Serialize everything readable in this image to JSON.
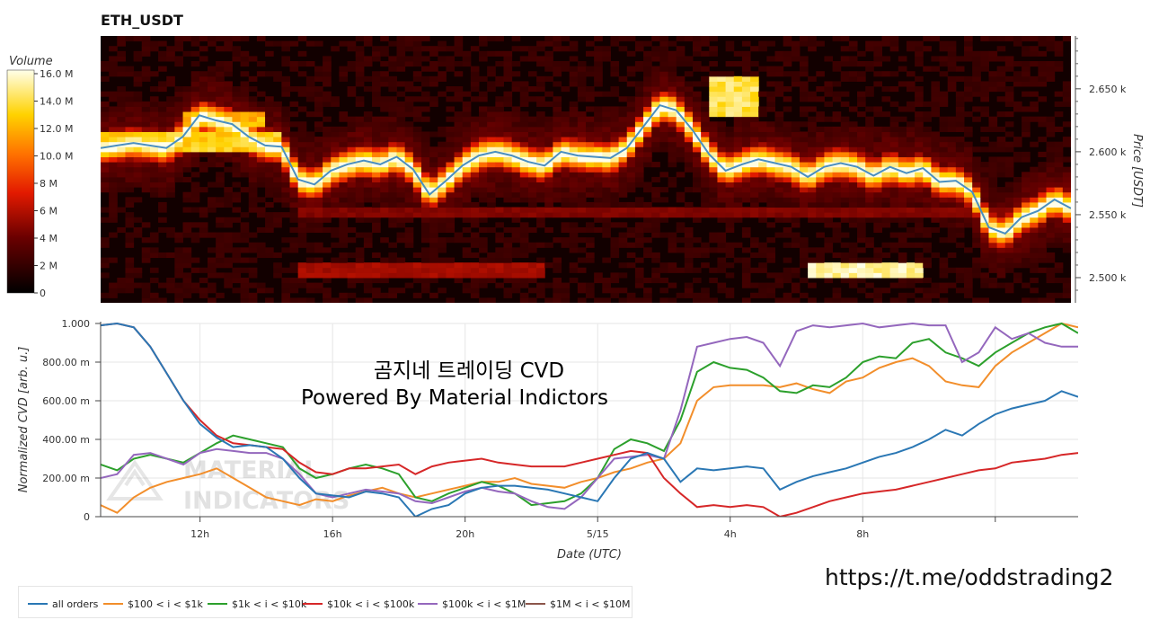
{
  "header": {
    "title": "ETH_USDT"
  },
  "colorbar": {
    "title": "Volume",
    "ticks": [
      "0",
      "2 M",
      "4 M",
      "6 M",
      "8 M",
      "10.0 M",
      "12.0 M",
      "14.0 M",
      "16.0 M"
    ]
  },
  "watermark": {
    "line1": "MATERIAL",
    "line2": "INDICATORS"
  },
  "annotation": {
    "line1": "곰지네 트레이딩 CVD",
    "line2": "Powered By Material Indictors"
  },
  "footer": {
    "link": "https://t.me/oddstrading2"
  },
  "colors": {
    "all_orders": "#2a77b4",
    "b100_1k": "#f28e2b",
    "b1k_10k": "#2ca02c",
    "b10k_100k": "#d62728",
    "b100k_1m": "#9467bd",
    "b1m_10m": "#8c564b",
    "price_line": "#4a8fc0"
  },
  "chart_data": [
    {
      "type": "heatmap",
      "title": "ETH_USDT",
      "xlabel": "",
      "ylabel": "Price [USDT]",
      "y_axis_side": "right",
      "ylim": [
        2480,
        2692
      ],
      "yticks": [
        2500,
        2550,
        2600,
        2650
      ],
      "ytick_labels": [
        "2.500 k",
        "2.550 k",
        "2.600 k",
        "2.650 k"
      ],
      "color_scale": {
        "name": "hot",
        "min": 0,
        "max": 16000000,
        "unit": "Volume"
      },
      "price_series": {
        "x_hours_from_start": [
          0,
          1,
          2,
          2.5,
          3,
          3.5,
          4,
          4.5,
          5,
          5.5,
          6,
          6.5,
          7,
          7.5,
          8,
          8.5,
          9,
          9.5,
          10,
          10.5,
          11,
          11.5,
          12,
          12.5,
          13,
          13.5,
          14,
          14.5,
          15,
          15.5,
          16,
          16.5,
          17,
          17.5,
          18,
          18.5,
          19,
          19.5,
          20,
          20.5,
          21,
          21.5,
          22,
          22.5,
          23,
          23.5,
          24,
          24.5,
          25,
          25.5,
          26,
          26.5,
          27,
          27.5,
          28,
          28.5,
          29,
          29.5
        ],
        "price": [
          2603,
          2607,
          2603,
          2612,
          2629,
          2625,
          2622,
          2612,
          2605,
          2604,
          2578,
          2574,
          2585,
          2590,
          2593,
          2590,
          2596,
          2586,
          2566,
          2577,
          2589,
          2597,
          2600,
          2597,
          2592,
          2589,
          2600,
          2597,
          2596,
          2595,
          2603,
          2620,
          2637,
          2633,
          2617,
          2598,
          2585,
          2590,
          2594,
          2591,
          2588,
          2580,
          2588,
          2591,
          2588,
          2581,
          2588,
          2583,
          2587,
          2576,
          2577,
          2568,
          2540,
          2535,
          2548,
          2553,
          2562,
          2555
        ]
      },
      "heat_bands": [
        {
          "price_low": 2600,
          "price_high": 2615,
          "volume": 14000000,
          "hours": [
            0,
            5.5
          ]
        },
        {
          "price_low": 2620,
          "price_high": 2632,
          "volume": 13000000,
          "hours": [
            2.5,
            5
          ]
        },
        {
          "price_low": 2500,
          "price_high": 2510,
          "volume": 6000000,
          "hours": [
            6,
            13.5
          ]
        },
        {
          "price_low": 2500,
          "price_high": 2510,
          "volume": 16000000,
          "hours": [
            21.5,
            25
          ]
        },
        {
          "price_low": 2548,
          "price_high": 2556,
          "volume": 5000000,
          "hours": [
            6,
            29.5
          ]
        },
        {
          "price_low": 2630,
          "price_high": 2660,
          "volume": 15000000,
          "hours": [
            18.5,
            20
          ]
        }
      ]
    },
    {
      "type": "line",
      "title": "",
      "xlabel": "Date (UTC)",
      "ylabel": "Normalized CVD [arb. u.]",
      "ylim": [
        0,
        1
      ],
      "yticks": [
        0,
        0.2,
        0.4,
        0.6,
        0.8,
        1.0
      ],
      "ytick_labels": [
        "0",
        "200.00 m",
        "400.00 m",
        "600.00 m",
        "800.00 m",
        "1.000"
      ],
      "xlim_hours": [
        0,
        29.5
      ],
      "xticks_hours": [
        3,
        7,
        11,
        15,
        19,
        23,
        27
      ],
      "xtick_labels": [
        "12h",
        "16h",
        "20h",
        "5/15",
        "4h",
        "8h",
        ""
      ],
      "grid": true,
      "legend_position": "bottom-left-outside",
      "x_hours_from_start": [
        0,
        0.5,
        1,
        1.5,
        2,
        2.5,
        3,
        3.5,
        4,
        4.5,
        5,
        5.5,
        6,
        6.5,
        7,
        7.5,
        8,
        8.5,
        9,
        9.5,
        10,
        10.5,
        11,
        11.5,
        12,
        12.5,
        13,
        13.5,
        14,
        14.5,
        15,
        15.5,
        16,
        16.5,
        17,
        17.5,
        18,
        18.5,
        19,
        19.5,
        20,
        20.5,
        21,
        21.5,
        22,
        22.5,
        23,
        23.5,
        24,
        24.5,
        25,
        25.5,
        26,
        26.5,
        27,
        27.5,
        28,
        28.5,
        29,
        29.5
      ],
      "series": [
        {
          "name": "all orders",
          "color_key": "all_orders",
          "values": [
            0.99,
            1.0,
            0.98,
            0.88,
            0.74,
            0.6,
            0.48,
            0.41,
            0.36,
            0.37,
            0.36,
            0.3,
            0.2,
            0.12,
            0.11,
            0.1,
            0.13,
            0.12,
            0.1,
            0.0,
            0.04,
            0.06,
            0.12,
            0.15,
            0.16,
            0.16,
            0.15,
            0.14,
            0.12,
            0.1,
            0.08,
            0.2,
            0.3,
            0.33,
            0.3,
            0.18,
            0.25,
            0.24,
            0.25,
            0.26,
            0.25,
            0.14,
            0.18,
            0.21,
            0.23,
            0.25,
            0.28,
            0.31,
            0.33,
            0.36,
            0.4,
            0.45,
            0.42,
            0.48,
            0.53,
            0.56,
            0.58,
            0.6,
            0.65,
            0.62
          ]
        },
        {
          "name": "$100 < i < $1k",
          "color_key": "b100_1k",
          "values": [
            0.06,
            0.02,
            0.1,
            0.15,
            0.18,
            0.2,
            0.22,
            0.25,
            0.2,
            0.15,
            0.1,
            0.08,
            0.06,
            0.09,
            0.08,
            0.11,
            0.13,
            0.15,
            0.12,
            0.1,
            0.12,
            0.14,
            0.16,
            0.18,
            0.18,
            0.2,
            0.17,
            0.16,
            0.15,
            0.18,
            0.2,
            0.23,
            0.25,
            0.28,
            0.3,
            0.38,
            0.6,
            0.67,
            0.68,
            0.68,
            0.68,
            0.67,
            0.69,
            0.66,
            0.64,
            0.7,
            0.72,
            0.77,
            0.8,
            0.82,
            0.78,
            0.7,
            0.68,
            0.67,
            0.78,
            0.85,
            0.9,
            0.95,
            1.0,
            0.98
          ]
        },
        {
          "name": "$1k < i < $10k",
          "color_key": "b1k_10k",
          "values": [
            0.27,
            0.24,
            0.3,
            0.32,
            0.3,
            0.28,
            0.33,
            0.38,
            0.42,
            0.4,
            0.38,
            0.36,
            0.25,
            0.2,
            0.22,
            0.25,
            0.27,
            0.25,
            0.22,
            0.1,
            0.08,
            0.12,
            0.15,
            0.18,
            0.16,
            0.12,
            0.06,
            0.07,
            0.08,
            0.12,
            0.2,
            0.35,
            0.4,
            0.38,
            0.34,
            0.5,
            0.75,
            0.8,
            0.77,
            0.76,
            0.72,
            0.65,
            0.64,
            0.68,
            0.67,
            0.72,
            0.8,
            0.83,
            0.82,
            0.9,
            0.92,
            0.85,
            0.82,
            0.78,
            0.85,
            0.9,
            0.95,
            0.98,
            1.0,
            0.95
          ]
        },
        {
          "name": "$10k < i < $100k",
          "color_key": "b10k_100k",
          "values": [
            0.99,
            1.0,
            0.98,
            0.88,
            0.74,
            0.6,
            0.5,
            0.42,
            0.38,
            0.37,
            0.36,
            0.35,
            0.28,
            0.23,
            0.22,
            0.25,
            0.25,
            0.26,
            0.27,
            0.22,
            0.26,
            0.28,
            0.29,
            0.3,
            0.28,
            0.27,
            0.26,
            0.26,
            0.26,
            0.28,
            0.3,
            0.32,
            0.34,
            0.33,
            0.2,
            0.12,
            0.05,
            0.06,
            0.05,
            0.06,
            0.05,
            0.0,
            0.02,
            0.05,
            0.08,
            0.1,
            0.12,
            0.13,
            0.14,
            0.16,
            0.18,
            0.2,
            0.22,
            0.24,
            0.25,
            0.28,
            0.29,
            0.3,
            0.32,
            0.33
          ]
        },
        {
          "name": "$100k < i < $1M",
          "color_key": "b100k_1m",
          "values": [
            0.2,
            0.22,
            0.32,
            0.33,
            0.3,
            0.27,
            0.33,
            0.35,
            0.34,
            0.33,
            0.33,
            0.3,
            0.22,
            0.12,
            0.1,
            0.12,
            0.14,
            0.13,
            0.12,
            0.08,
            0.07,
            0.1,
            0.13,
            0.15,
            0.13,
            0.12,
            0.08,
            0.05,
            0.04,
            0.1,
            0.2,
            0.3,
            0.31,
            0.32,
            0.3,
            0.55,
            0.88,
            0.9,
            0.92,
            0.93,
            0.9,
            0.78,
            0.96,
            0.99,
            0.98,
            0.99,
            1.0,
            0.98,
            0.99,
            1.0,
            0.99,
            0.99,
            0.8,
            0.85,
            0.98,
            0.92,
            0.95,
            0.9,
            0.88,
            0.88
          ]
        },
        {
          "name": "$1M < i < $10M",
          "color_key": "b1m_10m",
          "values": []
        }
      ]
    }
  ]
}
